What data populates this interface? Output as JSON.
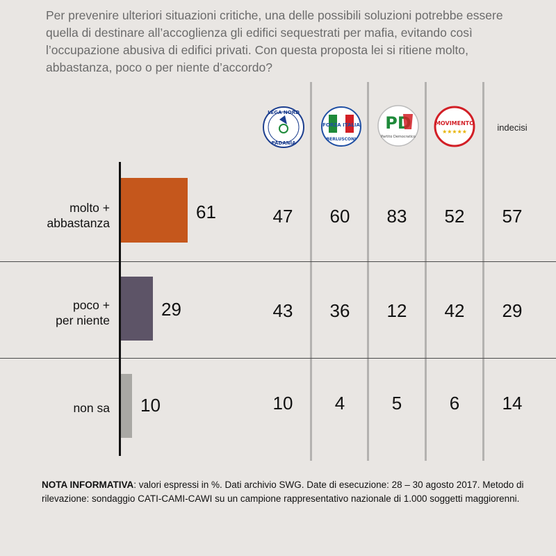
{
  "question": "Per prevenire ulteriori situazioni critiche, una delle possibili soluzioni potrebbe essere quella di destinare all’accoglienza gli edifici sequestrati per mafia, evitando così l’occupazione abusiva di edifici privati. Con questa proposta lei si ritiene molto, abbastanza, poco o per niente d’accordo?",
  "columns": [
    {
      "logo": "lega-nord-logo",
      "text_top": "LEGA NORD",
      "text_bottom": "PADANIA"
    },
    {
      "logo": "forza-italia-logo",
      "text_top": "FORZA ITALIA",
      "text_bottom": "BERLUSCONI"
    },
    {
      "logo": "partito-democratico-logo",
      "text_top": "PD",
      "text_bottom": "Partito Democratico"
    },
    {
      "logo": "movimento-5-stelle-logo",
      "text_top": "MOVIMENTO",
      "text_bottom": "★★★★★"
    },
    {
      "label": "indecisi"
    }
  ],
  "rows": [
    {
      "label_line1": "molto +",
      "label_line2": "abbastanza",
      "total": 61,
      "values": [
        47,
        60,
        83,
        52,
        57
      ]
    },
    {
      "label_line1": "poco +",
      "label_line2": "per niente",
      "total": 29,
      "values": [
        43,
        36,
        12,
        42,
        29
      ]
    },
    {
      "label_line1": "",
      "label_line2": "non sa",
      "total": 10,
      "values": [
        10,
        4,
        5,
        6,
        14
      ]
    }
  ],
  "colors": {
    "bar_molto": "#c5571c",
    "bar_poco": "#5d5467",
    "bar_nonsa": "#a9a8a4"
  },
  "note": {
    "bold": "NOTA INFORMATIVA",
    "text": ": valori espressi in %. Dati archivio SWG. Date di esecuzione: 28 – 30 agosto 2017. Metodo di rilevazione: sondaggio CATI-CAMI-CAWI su un campione rappresentativo nazionale di 1.000 soggetti maggiorenni."
  },
  "chart_data": {
    "type": "bar",
    "categories": [
      "molto + abbastanza",
      "poco + per niente",
      "non sa"
    ],
    "values": [
      61,
      29,
      10
    ],
    "table": {
      "columns": [
        "Lega Nord",
        "Forza Italia",
        "Partito Democratico",
        "Movimento 5 Stelle",
        "indecisi"
      ],
      "series": [
        {
          "name": "molto + abbastanza",
          "values": [
            47,
            60,
            83,
            52,
            57
          ]
        },
        {
          "name": "poco + per niente",
          "values": [
            43,
            36,
            12,
            42,
            29
          ]
        },
        {
          "name": "non sa",
          "values": [
            10,
            4,
            5,
            6,
            14
          ]
        }
      ]
    }
  }
}
